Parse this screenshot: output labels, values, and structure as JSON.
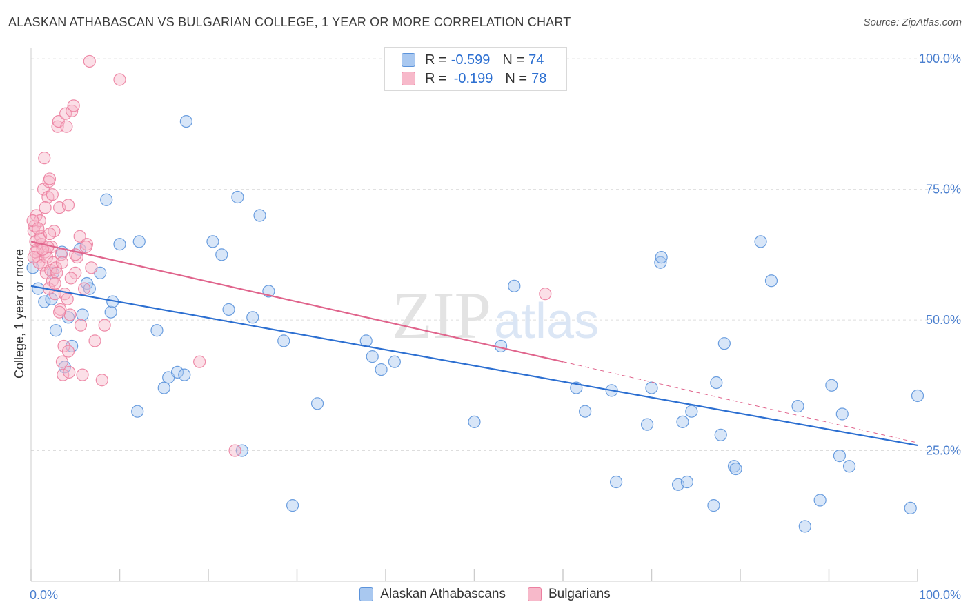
{
  "title": "ALASKAN ATHABASCAN VS BULGARIAN COLLEGE, 1 YEAR OR MORE CORRELATION CHART",
  "source": "Source: ZipAtlas.com",
  "watermark": {
    "zip": "ZIP",
    "atlas": "atlas"
  },
  "legend": {
    "series1": {
      "r_label": "R =",
      "r_value": "-0.599",
      "n_label": "N =",
      "n_value": "74"
    },
    "series2": {
      "r_label": "R =",
      "r_value": "-0.199",
      "n_label": "N =",
      "n_value": "78"
    }
  },
  "colors": {
    "blue_fill": "#a9c8f0",
    "blue_stroke": "#5b93db",
    "blue_line": "#2c6fd1",
    "pink_fill": "#f7b9ca",
    "pink_stroke": "#ec7fa0",
    "pink_line": "#e0648c",
    "grid": "#dddddd",
    "tick_label": "#4a7fcf"
  },
  "chart_data": {
    "type": "scatter",
    "title": "ALASKAN ATHABASCAN VS BULGARIAN COLLEGE, 1 YEAR OR MORE CORRELATION CHART",
    "xlabel": "",
    "ylabel": "College, 1 year or more",
    "xlim": [
      0,
      100
    ],
    "ylim": [
      0,
      102
    ],
    "x_tick_labels": [
      "0.0%",
      "100.0%"
    ],
    "y_ticks": [
      25,
      50,
      75,
      100
    ],
    "y_tick_labels": [
      "25.0%",
      "50.0%",
      "75.0%",
      "100.0%"
    ],
    "grid": true,
    "series": [
      {
        "name": "Alaskan Athabascans",
        "color": "#5b93db",
        "points": [
          [
            0.8,
            56
          ],
          [
            1.5,
            53.5
          ],
          [
            2.3,
            54
          ],
          [
            2.8,
            48
          ],
          [
            3.5,
            63
          ],
          [
            3.8,
            41
          ],
          [
            4.6,
            45
          ],
          [
            5.5,
            63.5
          ],
          [
            5.8,
            51
          ],
          [
            6.3,
            57
          ],
          [
            6.6,
            56
          ],
          [
            7.8,
            59
          ],
          [
            8.5,
            73
          ],
          [
            9,
            51.5
          ],
          [
            9.2,
            53.5
          ],
          [
            10,
            64.5
          ],
          [
            12,
            32.5
          ],
          [
            12.2,
            65
          ],
          [
            14.2,
            48
          ],
          [
            15,
            37
          ],
          [
            15.5,
            39
          ],
          [
            16.5,
            40
          ],
          [
            17.3,
            39.5
          ],
          [
            17.5,
            88
          ],
          [
            20.5,
            65
          ],
          [
            21.5,
            62.5
          ],
          [
            22.3,
            52
          ],
          [
            23.3,
            73.5
          ],
          [
            23.8,
            25
          ],
          [
            25,
            50.5
          ],
          [
            25.8,
            70
          ],
          [
            26.8,
            55.5
          ],
          [
            28.5,
            46
          ],
          [
            29.5,
            14.5
          ],
          [
            32.3,
            34
          ],
          [
            37.8,
            46
          ],
          [
            38.5,
            43
          ],
          [
            39.5,
            40.5
          ],
          [
            41,
            42
          ],
          [
            50,
            30.5
          ],
          [
            53,
            45
          ],
          [
            54.5,
            56.5
          ],
          [
            61.5,
            37
          ],
          [
            62.5,
            32.5
          ],
          [
            65.5,
            36.5
          ],
          [
            66,
            19
          ],
          [
            69.5,
            30
          ],
          [
            70,
            37
          ],
          [
            71,
            61
          ],
          [
            71.1,
            62
          ],
          [
            73,
            18.5
          ],
          [
            73.5,
            30.5
          ],
          [
            74,
            19
          ],
          [
            74.5,
            32.5
          ],
          [
            77,
            14.5
          ],
          [
            77.3,
            38
          ],
          [
            77.8,
            28
          ],
          [
            78.2,
            45.5
          ],
          [
            79.3,
            22
          ],
          [
            79.5,
            21.5
          ],
          [
            82.3,
            65
          ],
          [
            83.5,
            57.5
          ],
          [
            86.5,
            33.5
          ],
          [
            87.3,
            10.5
          ],
          [
            89,
            15.5
          ],
          [
            90.3,
            37.5
          ],
          [
            91.2,
            24
          ],
          [
            91.5,
            32
          ],
          [
            92.3,
            22
          ],
          [
            99.2,
            14
          ],
          [
            100,
            35.5
          ],
          [
            0.2,
            60
          ],
          [
            2.5,
            59
          ],
          [
            4.2,
            50.5
          ]
        ]
      },
      {
        "name": "Bulgarians",
        "color": "#ec7fa0",
        "points": [
          [
            0.3,
            67
          ],
          [
            0.4,
            68
          ],
          [
            0.5,
            65
          ],
          [
            0.6,
            70
          ],
          [
            0.7,
            63.5
          ],
          [
            0.8,
            62
          ],
          [
            0.9,
            61
          ],
          [
            1,
            69
          ],
          [
            1.1,
            66
          ],
          [
            1.2,
            64.5
          ],
          [
            1.3,
            60.5
          ],
          [
            1.4,
            75
          ],
          [
            1.5,
            81
          ],
          [
            1.6,
            63
          ],
          [
            1.7,
            59
          ],
          [
            1.8,
            62
          ],
          [
            1.9,
            73.5
          ],
          [
            2,
            76.5
          ],
          [
            2.1,
            77
          ],
          [
            2.2,
            59.5
          ],
          [
            2.3,
            64
          ],
          [
            2.4,
            57.5
          ],
          [
            2.5,
            61
          ],
          [
            2.6,
            67
          ],
          [
            2.7,
            55
          ],
          [
            2.8,
            60
          ],
          [
            3,
            87
          ],
          [
            3.1,
            88
          ],
          [
            3.2,
            71.5
          ],
          [
            3.3,
            52
          ],
          [
            3.4,
            62.5
          ],
          [
            3.5,
            42
          ],
          [
            3.6,
            39.5
          ],
          [
            3.7,
            45
          ],
          [
            3.8,
            55
          ],
          [
            3.9,
            89.5
          ],
          [
            4,
            87
          ],
          [
            4.1,
            54
          ],
          [
            4.2,
            72
          ],
          [
            4.3,
            40
          ],
          [
            4.4,
            51
          ],
          [
            4.6,
            90
          ],
          [
            4.8,
            91
          ],
          [
            5,
            59
          ],
          [
            5.2,
            62
          ],
          [
            5.5,
            66
          ],
          [
            5.8,
            39.5
          ],
          [
            6,
            56
          ],
          [
            6.3,
            64.5
          ],
          [
            6.6,
            99.5
          ],
          [
            6.8,
            60
          ],
          [
            7.2,
            46
          ],
          [
            8,
            38.5
          ],
          [
            8.3,
            49
          ],
          [
            10,
            96
          ],
          [
            19,
            42
          ],
          [
            23,
            25
          ],
          [
            0.2,
            69
          ],
          [
            0.5,
            63
          ],
          [
            1,
            65.5
          ],
          [
            1.6,
            71.5
          ],
          [
            2,
            56
          ],
          [
            2.4,
            74
          ],
          [
            2.9,
            59
          ],
          [
            3.2,
            51.5
          ],
          [
            4.2,
            44
          ],
          [
            5,
            62.5
          ],
          [
            5.6,
            49
          ],
          [
            6.2,
            64
          ],
          [
            0.3,
            62
          ],
          [
            1.9,
            64
          ],
          [
            2.7,
            57
          ],
          [
            3.5,
            61
          ],
          [
            0.8,
            67.5
          ],
          [
            1.3,
            63.5
          ],
          [
            2.1,
            66.5
          ],
          [
            4.5,
            58
          ],
          [
            58,
            55
          ]
        ]
      }
    ],
    "trendlines": [
      {
        "series": "Alaskan Athabascans",
        "x": [
          0,
          100
        ],
        "y": [
          56.5,
          26
        ]
      },
      {
        "series": "Bulgarians",
        "x": [
          0,
          60,
          100
        ],
        "y": [
          65,
          42,
          26.5
        ],
        "solid_until_x": 60
      }
    ]
  },
  "bottom_legend": [
    "Alaskan Athabascans",
    "Bulgarians"
  ]
}
